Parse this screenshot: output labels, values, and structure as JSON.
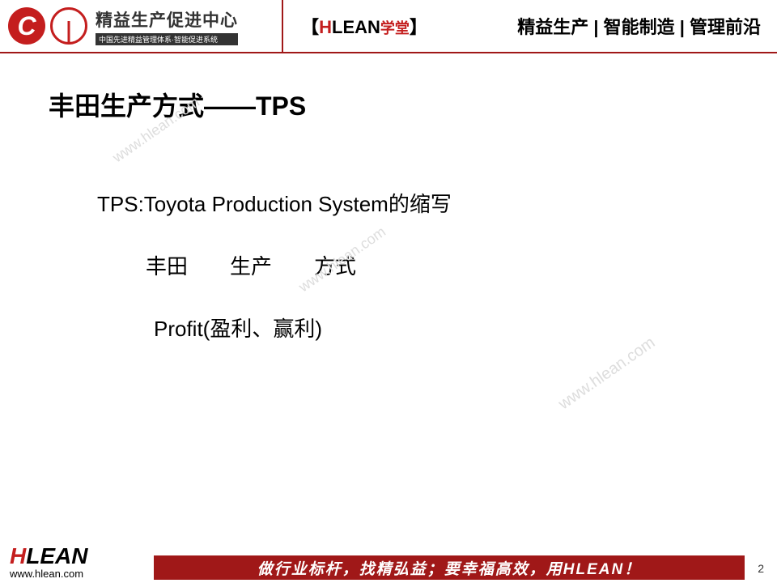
{
  "header": {
    "logo_title": "精益生产促进中心",
    "logo_sub": "中国先进精益管理体系·智能促进系统",
    "center_prefix": "【",
    "center_h": "H",
    "center_lean": "LEAN",
    "center_xuetang": "学堂",
    "center_suffix": "】",
    "right_text": "精益生产 | 智能制造 | 管理前沿"
  },
  "slide": {
    "title": "丰田生产方式——TPS",
    "line1": "TPS:Toyota Production System的缩写",
    "line2": "丰田　　生产　　方式",
    "line3": "Profit(盈利、赢利)"
  },
  "watermark": "www.hlean.com",
  "footer": {
    "logo_h": "H",
    "logo_rest": "LEAN",
    "url": "www.hlean.com",
    "banner": "做行业标杆，找精弘益；要幸福高效，用HLEAN！",
    "page": "2"
  },
  "colors": {
    "brand_red": "#c41e1e",
    "dark_red": "#a01818",
    "text": "#000000",
    "watermark": "#dddddd",
    "background": "#ffffff"
  }
}
